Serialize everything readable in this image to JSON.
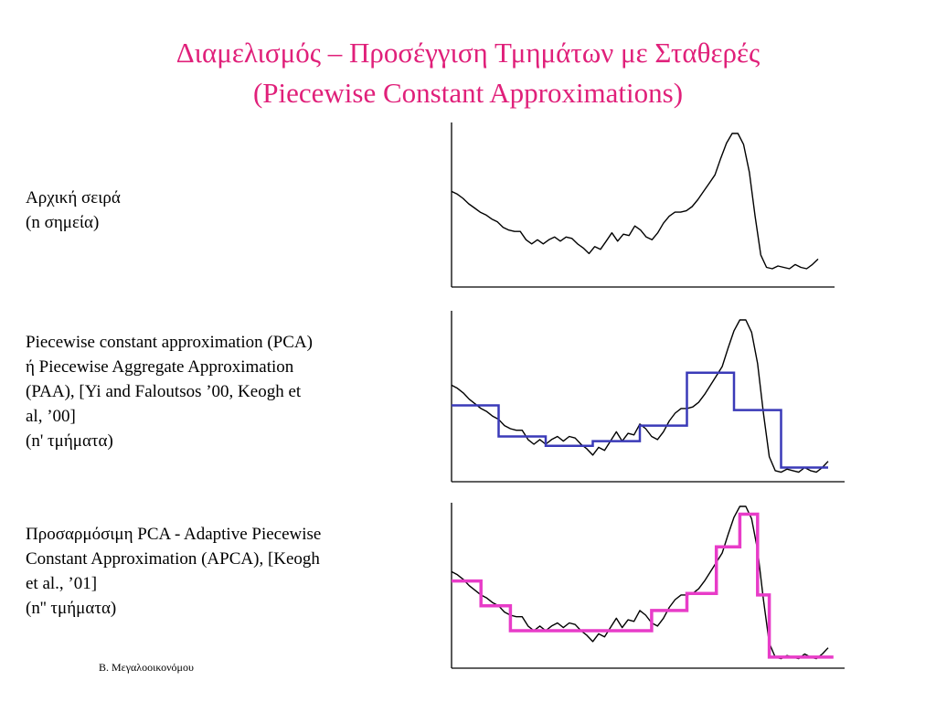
{
  "slide": {
    "title_line1": "Διαμελισμός – Προσέγγιση Τμημάτων με Σταθερές",
    "title_line2": "(Piecewise Constant Approximations)",
    "footer": "Β. Μεγαλοοικονόμου"
  },
  "panels": [
    {
      "label_lines": [
        "Αρχική σειρά",
        "(n σημεία)"
      ]
    },
    {
      "label_lines": [
        "Piecewise constant approximation (PCA)",
        "ή Piecewise Aggregate Approximation",
        "(PAA), [Yi and Faloutsos ’00, Keogh et",
        "al, ’00]",
        "(n' τμήματα)"
      ]
    },
    {
      "label_lines": [
        "Προσαρμόσιμη PCA - Adaptive Piecewise",
        "Constant Approximation (APCA), [Keogh",
        "et al., ’01]",
        "(n'' τμήματα)"
      ]
    }
  ],
  "colors": {
    "title": "#e0207a",
    "series": "#000000",
    "paa": "#3a3ab8",
    "apca": "#e83cc8"
  },
  "chart_data": [
    {
      "type": "line",
      "series": [
        {
          "values": [
            0.58,
            0.56,
            0.53,
            0.49,
            0.46,
            0.43,
            0.41,
            0.38,
            0.36,
            0.32,
            0.3,
            0.29,
            0.29,
            0.23,
            0.2,
            0.23,
            0.2,
            0.23,
            0.25,
            0.22,
            0.25,
            0.24,
            0.2,
            0.17,
            0.13,
            0.18,
            0.16,
            0.22,
            0.28,
            0.22,
            0.27,
            0.26,
            0.33,
            0.3,
            0.25,
            0.23,
            0.28,
            0.35,
            0.4,
            0.43,
            0.43,
            0.44,
            0.47,
            0.52,
            0.58,
            0.64,
            0.7,
            0.82,
            0.93,
            1.0,
            1.0,
            0.92,
            0.72,
            0.4,
            0.12,
            0.03,
            0.02,
            0.04,
            0.03,
            0.02,
            0.05,
            0.03,
            0.02,
            0.05,
            0.09
          ]
        }
      ]
    },
    {
      "type": "line",
      "series": [
        {
          "values": [
            0.58,
            0.56,
            0.53,
            0.49,
            0.46,
            0.43,
            0.41,
            0.38,
            0.36,
            0.32,
            0.3,
            0.29,
            0.29,
            0.23,
            0.2,
            0.23,
            0.2,
            0.23,
            0.25,
            0.22,
            0.25,
            0.24,
            0.2,
            0.17,
            0.13,
            0.18,
            0.16,
            0.22,
            0.28,
            0.22,
            0.27,
            0.26,
            0.33,
            0.3,
            0.25,
            0.23,
            0.28,
            0.35,
            0.4,
            0.43,
            0.43,
            0.44,
            0.47,
            0.52,
            0.58,
            0.64,
            0.7,
            0.82,
            0.93,
            1.0,
            1.0,
            0.92,
            0.72,
            0.4,
            0.12,
            0.03,
            0.02,
            0.04,
            0.03,
            0.02,
            0.05,
            0.03,
            0.02,
            0.05,
            0.09
          ]
        },
        {
          "segments": [
            {
              "x": [
                0,
                8
              ],
              "y": 0.45
            },
            {
              "x": [
                8,
                16
              ],
              "y": 0.25
            },
            {
              "x": [
                16,
                24
              ],
              "y": 0.19
            },
            {
              "x": [
                24,
                32
              ],
              "y": 0.22
            },
            {
              "x": [
                32,
                40
              ],
              "y": 0.32
            },
            {
              "x": [
                40,
                48
              ],
              "y": 0.66
            },
            {
              "x": [
                48,
                56
              ],
              "y": 0.42
            },
            {
              "x": [
                56,
                64
              ],
              "y": 0.05
            }
          ]
        }
      ]
    },
    {
      "type": "line",
      "series": [
        {
          "values": [
            0.58,
            0.56,
            0.53,
            0.49,
            0.46,
            0.43,
            0.41,
            0.38,
            0.36,
            0.32,
            0.3,
            0.29,
            0.29,
            0.23,
            0.2,
            0.23,
            0.2,
            0.23,
            0.25,
            0.22,
            0.25,
            0.24,
            0.2,
            0.17,
            0.13,
            0.18,
            0.16,
            0.22,
            0.28,
            0.22,
            0.27,
            0.26,
            0.33,
            0.3,
            0.25,
            0.23,
            0.28,
            0.35,
            0.4,
            0.43,
            0.43,
            0.44,
            0.47,
            0.52,
            0.58,
            0.64,
            0.7,
            0.82,
            0.93,
            1.0,
            1.0,
            0.92,
            0.72,
            0.4,
            0.12,
            0.03,
            0.02,
            0.04,
            0.03,
            0.02,
            0.05,
            0.03,
            0.02,
            0.05,
            0.09
          ]
        },
        {
          "segments": [
            {
              "x": [
                0,
                5
              ],
              "y": 0.52
            },
            {
              "x": [
                5,
                10
              ],
              "y": 0.36
            },
            {
              "x": [
                10,
                34
              ],
              "y": 0.2
            },
            {
              "x": [
                34,
                40
              ],
              "y": 0.33
            },
            {
              "x": [
                40,
                45
              ],
              "y": 0.44
            },
            {
              "x": [
                45,
                49
              ],
              "y": 0.74
            },
            {
              "x": [
                49,
                52
              ],
              "y": 0.95
            },
            {
              "x": [
                52,
                54
              ],
              "y": 0.43
            },
            {
              "x": [
                54,
                65
              ],
              "y": 0.03
            }
          ]
        }
      ]
    }
  ]
}
